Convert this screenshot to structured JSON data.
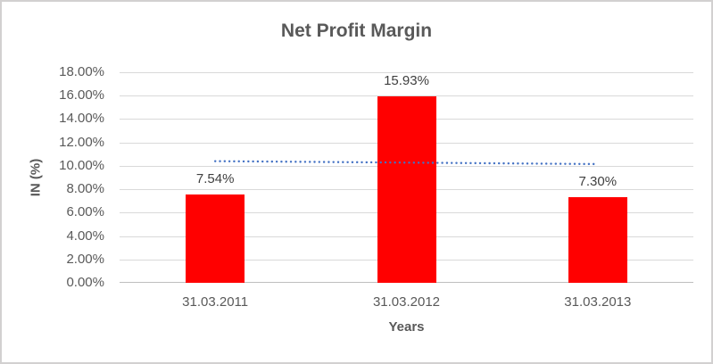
{
  "chart_data": {
    "type": "bar",
    "title": "Net Profit Margin",
    "xlabel": "Years",
    "ylabel": "IN (%)",
    "categories": [
      "31.03.2011",
      "31.03.2012",
      "31.03.2013"
    ],
    "values": [
      7.54,
      15.93,
      7.3
    ],
    "data_labels": [
      "7.54%",
      "15.93%",
      "7.30%"
    ],
    "ylim": [
      0,
      18
    ],
    "ytick_step": 2,
    "ytick_labels": [
      "0.00%",
      "2.00%",
      "4.00%",
      "6.00%",
      "8.00%",
      "10.00%",
      "12.00%",
      "14.00%",
      "16.00%",
      "18.00%"
    ],
    "grid": true,
    "legend": "none",
    "bar_color": "#FF0000",
    "trendline": {
      "type": "linear",
      "style": "dotted",
      "color": "#4472C4",
      "start_value": 10.4,
      "end_value": 10.15
    },
    "colors": {
      "title_text": "#595959",
      "axis_text": "#595959",
      "data_label_text": "#404040",
      "gridline": "#D9D9D9",
      "axis_line": "#BFBFBF",
      "border": "#D2D0D0"
    }
  }
}
